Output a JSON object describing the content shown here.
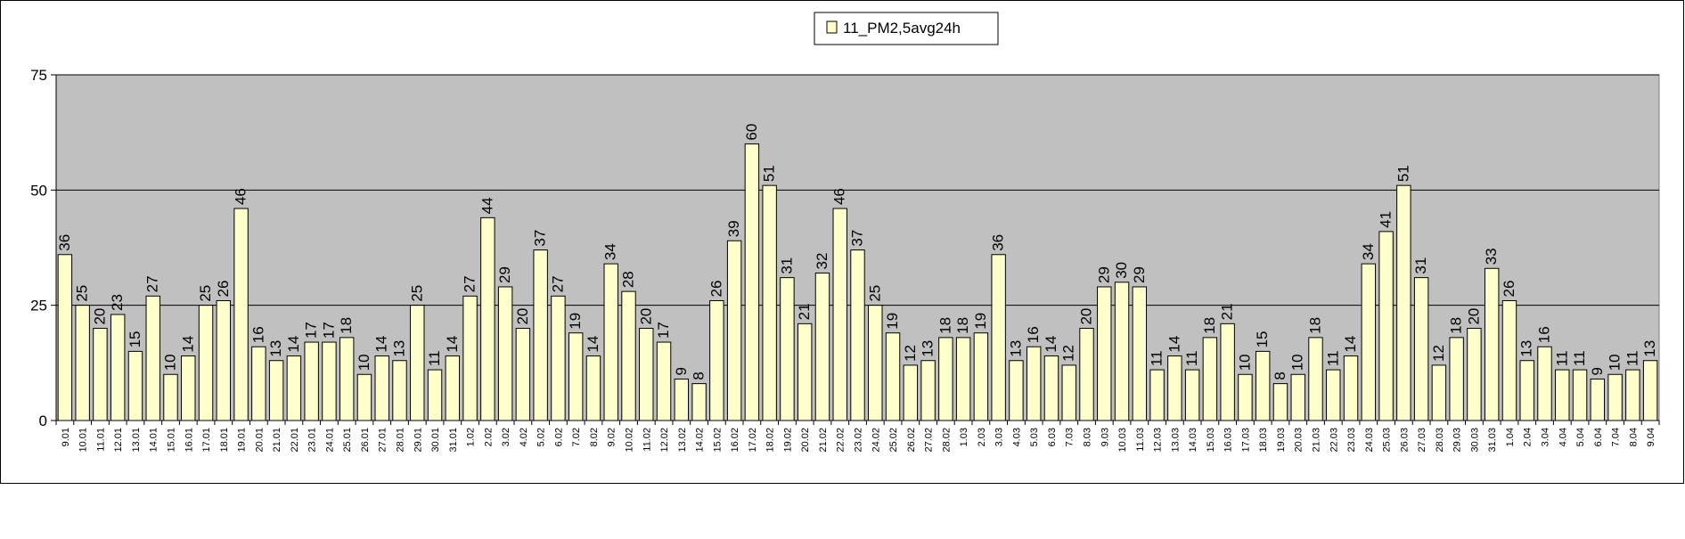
{
  "chart_data": {
    "type": "bar",
    "title": "",
    "xlabel": "",
    "ylabel": "",
    "ylim": [
      0,
      75
    ],
    "yticks": [
      0,
      25,
      50,
      75
    ],
    "grid": true,
    "legend_position": "top-center",
    "colors": {
      "plot_background": "#c0c0c0",
      "bar_fill": "#ffffcc",
      "bar_stroke": "#000000"
    },
    "series": [
      {
        "name": "11_PM2,5avg24h",
        "values": [
          36,
          25,
          20,
          23,
          15,
          27,
          10,
          14,
          25,
          26,
          46,
          16,
          13,
          14,
          17,
          17,
          18,
          10,
          14,
          13,
          25,
          11,
          14,
          27,
          44,
          29,
          20,
          37,
          27,
          19,
          14,
          34,
          28,
          20,
          17,
          9,
          8,
          26,
          39,
          60,
          51,
          31,
          21,
          32,
          46,
          37,
          25,
          19,
          12,
          13,
          18,
          18,
          19,
          36,
          13,
          16,
          14,
          12,
          20,
          29,
          30,
          29,
          11,
          14,
          11,
          18,
          21,
          10,
          15,
          8,
          10,
          18,
          11,
          14,
          34,
          41,
          51,
          31,
          12,
          18,
          20,
          33,
          26,
          13,
          16,
          11,
          11,
          9,
          10,
          11,
          13
        ]
      }
    ],
    "categories": [
      "9.01",
      "10.01",
      "11.01",
      "12.01",
      "13.01",
      "14.01",
      "15.01",
      "16.01",
      "17.01",
      "18.01",
      "19.01",
      "20.01",
      "21.01",
      "22.01",
      "23.01",
      "24.01",
      "25.01",
      "26.01",
      "27.01",
      "28.01",
      "29.01",
      "30.01",
      "31.01",
      "1.02",
      "2.02",
      "3.02",
      "4.02",
      "5.02",
      "6.02",
      "7.02",
      "8.02",
      "9.02",
      "10.02",
      "11.02",
      "12.02",
      "13.02",
      "14.02",
      "15.02",
      "16.02",
      "17.02",
      "18.02",
      "19.02",
      "20.02",
      "21.02",
      "22.02",
      "23.02",
      "24.02",
      "25.02",
      "26.02",
      "27.02",
      "28.02",
      "1.03",
      "2.03",
      "3.03",
      "4.03",
      "5.03",
      "6.03",
      "7.03",
      "8.03",
      "9.03",
      "10.03",
      "11.03",
      "12.03",
      "13.03",
      "14.03",
      "15.03",
      "16.03",
      "17.03",
      "18.03",
      "19.03",
      "20.03",
      "21.03",
      "22.03",
      "23.03",
      "24.03",
      "25.03",
      "26.03",
      "27.03",
      "28.03",
      "29.03",
      "30.03",
      "31.03",
      "1.04",
      "2.04",
      "3.04",
      "4.04",
      "5.04",
      "6.04",
      "7.04",
      "8.04",
      "9.04"
    ]
  }
}
